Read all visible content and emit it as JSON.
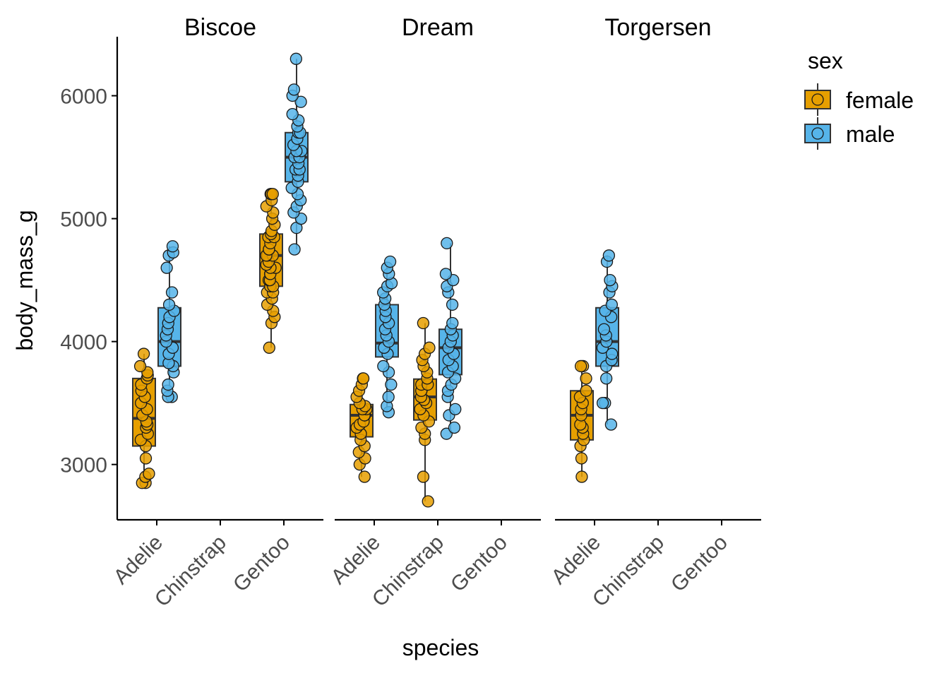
{
  "chart_data": {
    "type": "box",
    "x_title": "species",
    "y_title": "body_mass_g",
    "categories": [
      "Adelie",
      "Chinstrap",
      "Gentoo"
    ],
    "y_ticks": [
      3000,
      4000,
      5000,
      6000
    ],
    "y_range": [
      2550,
      6480
    ],
    "legend": {
      "title": "sex",
      "position": "right",
      "entries": [
        {
          "label": "female",
          "color": "#E69F00"
        },
        {
          "label": "male",
          "color": "#56B4E9"
        }
      ]
    },
    "facets": [
      {
        "name": "Biscoe",
        "boxes": [
          {
            "species": "Adelie",
            "sex": "female",
            "min": 2850,
            "q1": 3150,
            "median": 3375,
            "q3": 3700,
            "max": 3900,
            "points": [
              2850,
              2850,
              2900,
              2925,
              3050,
              3150,
              3200,
              3250,
              3300,
              3325,
              3350,
              3400,
              3450,
              3500,
              3550,
              3600,
              3650,
              3700,
              3725,
              3750,
              3800,
              3900
            ]
          },
          {
            "species": "Adelie",
            "sex": "male",
            "min": 3550,
            "q1": 3800,
            "median": 4000,
            "q3": 4275,
            "max": 4775,
            "points": [
              3550,
              3550,
              3600,
              3650,
              3750,
              3800,
              3825,
              3900,
              3950,
              4000,
              4050,
              4100,
              4150,
              4200,
              4250,
              4300,
              4400,
              4600,
              4700,
              4725,
              4775
            ]
          },
          {
            "species": "Gentoo",
            "sex": "female",
            "min": 3950,
            "q1": 4450,
            "median": 4700,
            "q3": 4875,
            "max": 5200,
            "points": [
              3950,
              4150,
              4200,
              4250,
              4300,
              4350,
              4400,
              4400,
              4450,
              4450,
              4500,
              4500,
              4550,
              4550,
              4600,
              4600,
              4625,
              4650,
              4700,
              4700,
              4700,
              4750,
              4750,
              4800,
              4850,
              4850,
              4875,
              4900,
              4950,
              5000,
              5050,
              5100,
              5150,
              5200,
              5200,
              5200
            ]
          },
          {
            "species": "Gentoo",
            "sex": "male",
            "min": 4750,
            "q1": 5300,
            "median": 5500,
            "q3": 5700,
            "max": 6300,
            "points": [
              4750,
              4925,
              5000,
              5050,
              5100,
              5150,
              5200,
              5250,
              5300,
              5350,
              5400,
              5400,
              5450,
              5500,
              5500,
              5550,
              5550,
              5600,
              5650,
              5700,
              5700,
              5750,
              5800,
              5850,
              5950,
              6000,
              6050,
              6300
            ]
          }
        ]
      },
      {
        "name": "Dream",
        "boxes": [
          {
            "species": "Adelie",
            "sex": "female",
            "min": 2900,
            "q1": 3225,
            "median": 3400,
            "q3": 3488,
            "max": 3700,
            "points": [
              2900,
              3000,
              3050,
              3100,
              3150,
              3200,
              3250,
              3300,
              3325,
              3350,
              3400,
              3400,
              3450,
              3450,
              3475,
              3500,
              3550,
              3600,
              3650,
              3700,
              3700
            ]
          },
          {
            "species": "Adelie",
            "sex": "male",
            "min": 3425,
            "q1": 3875,
            "median": 3988,
            "q3": 4300,
            "max": 4650,
            "points": [
              3425,
              3475,
              3550,
              3650,
              3750,
              3800,
              3900,
              3950,
              4000,
              4050,
              4100,
              4150,
              4200,
              4250,
              4300,
              4350,
              4400,
              4450,
              4475,
              4550,
              4600,
              4650
            ]
          },
          {
            "species": "Chinstrap",
            "sex": "female",
            "min": 2700,
            "q1": 3362,
            "median": 3550,
            "q3": 3695,
            "max": 4150,
            "points": [
              2700,
              2900,
              3200,
              3250,
              3300,
              3350,
              3400,
              3450,
              3500,
              3525,
              3550,
              3600,
              3600,
              3650,
              3650,
              3700,
              3750,
              3800,
              3850,
              3900,
              3950,
              4150
            ]
          },
          {
            "species": "Chinstrap",
            "sex": "male",
            "min": 3250,
            "q1": 3731,
            "median": 3950,
            "q3": 4100,
            "max": 4800,
            "points": [
              3250,
              3300,
              3400,
              3450,
              3550,
              3600,
              3650,
              3700,
              3750,
              3800,
              3850,
              3900,
              3950,
              4000,
              4050,
              4100,
              4150,
              4300,
              4400,
              4450,
              4500,
              4550,
              4800
            ]
          }
        ]
      },
      {
        "name": "Torgersen",
        "boxes": [
          {
            "species": "Adelie",
            "sex": "female",
            "min": 2900,
            "q1": 3200,
            "median": 3400,
            "q3": 3600,
            "max": 3800,
            "points": [
              2900,
              3050,
              3150,
              3200,
              3250,
              3300,
              3325,
              3400,
              3450,
              3500,
              3550,
              3600,
              3700,
              3800,
              3800
            ]
          },
          {
            "species": "Adelie",
            "sex": "male",
            "min": 3325,
            "q1": 3800,
            "median": 4000,
            "q3": 4275,
            "max": 4700,
            "points": [
              3325,
              3500,
              3500,
              3700,
              3800,
              3850,
              3900,
              3950,
              4000,
              4050,
              4100,
              4200,
              4250,
              4300,
              4400,
              4450,
              4500,
              4650,
              4700
            ]
          }
        ]
      }
    ]
  }
}
